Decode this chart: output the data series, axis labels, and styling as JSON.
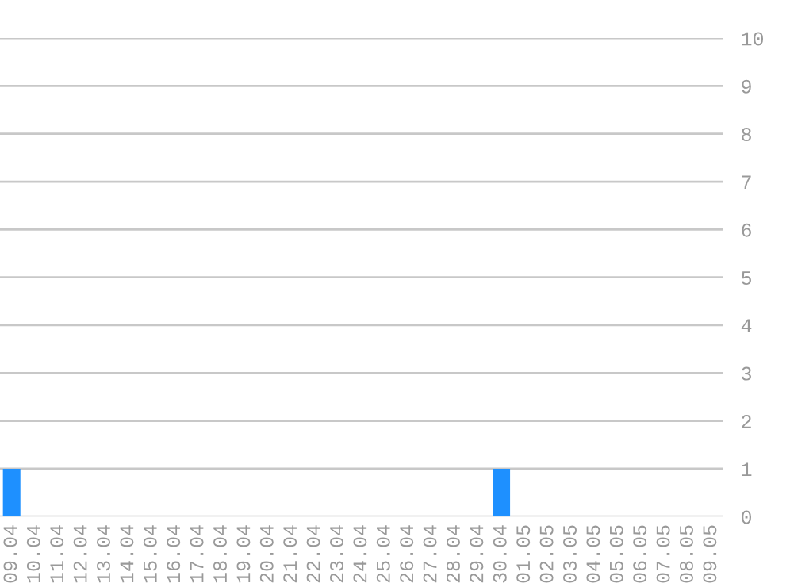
{
  "chart_data": {
    "type": "bar",
    "categories": [
      "09.04",
      "10.04",
      "11.04",
      "12.04",
      "13.04",
      "14.04",
      "15.04",
      "16.04",
      "17.04",
      "18.04",
      "19.04",
      "20.04",
      "21.04",
      "22.04",
      "23.04",
      "24.04",
      "25.04",
      "26.04",
      "27.04",
      "28.04",
      "29.04",
      "30.04",
      "01.05",
      "02.05",
      "03.05",
      "04.05",
      "05.05",
      "06.05",
      "07.05",
      "08.05",
      "09.05"
    ],
    "values": [
      1,
      0,
      0,
      0,
      0,
      0,
      0,
      0,
      0,
      0,
      0,
      0,
      0,
      0,
      0,
      0,
      0,
      0,
      0,
      0,
      0,
      1,
      0,
      0,
      0,
      0,
      0,
      0,
      0,
      0,
      0
    ],
    "color": "#1e90ff",
    "ylim": [
      0,
      10
    ],
    "yticks": [
      0,
      1,
      2,
      3,
      4,
      5,
      6,
      7,
      8,
      9,
      10
    ],
    "grid": "y"
  }
}
